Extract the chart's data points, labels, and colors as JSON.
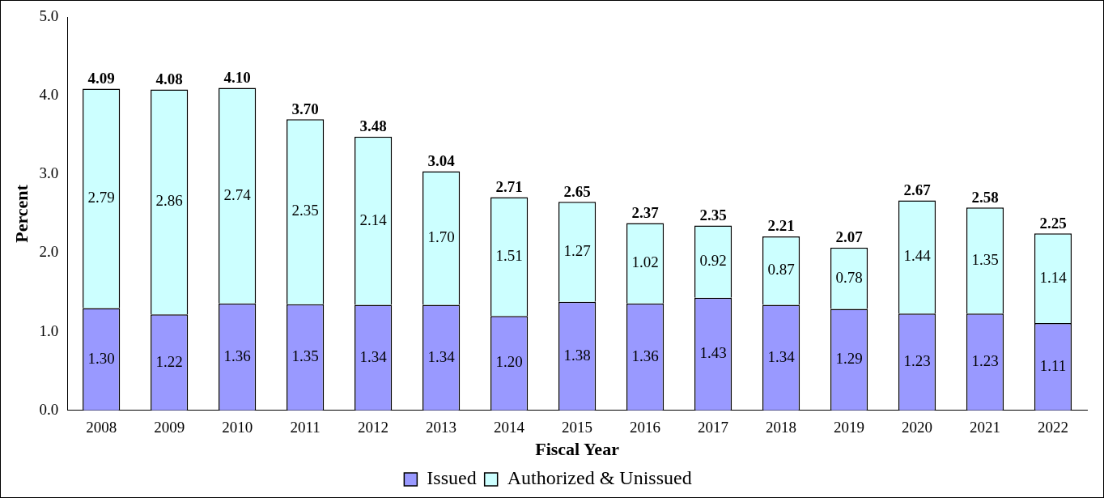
{
  "chart_data": {
    "type": "bar",
    "stacked": true,
    "xlabel": "Fiscal Year",
    "ylabel": "Percent",
    "categories": [
      "2008",
      "2009",
      "2010",
      "2011",
      "2012",
      "2013",
      "2014",
      "2015",
      "2016",
      "2017",
      "2018",
      "2019",
      "2020",
      "2021",
      "2022"
    ],
    "series": [
      {
        "name": "Issued",
        "color": "#9999ff",
        "values": [
          1.3,
          1.22,
          1.36,
          1.35,
          1.34,
          1.34,
          1.2,
          1.38,
          1.36,
          1.43,
          1.34,
          1.29,
          1.23,
          1.23,
          1.11
        ]
      },
      {
        "name": "Authorized & Unissued",
        "color": "#ccffff",
        "values": [
          2.79,
          2.86,
          2.74,
          2.35,
          2.14,
          1.7,
          1.51,
          1.27,
          1.02,
          0.92,
          0.87,
          0.78,
          1.44,
          1.35,
          1.14
        ]
      }
    ],
    "value_labels": [
      [
        "1.30",
        "1.22",
        "1.36",
        "1.35",
        "1.34",
        "1.34",
        "1.20",
        "1.38",
        "1.36",
        "1.43",
        "1.34",
        "1.29",
        "1.23",
        "1.23",
        "1.11"
      ],
      [
        "2.79",
        "2.86",
        "2.74",
        "2.35",
        "2.14",
        "1.70",
        "1.51",
        "1.27",
        "1.02",
        "0.92",
        "0.87",
        "0.78",
        "1.44",
        "1.35",
        "1.14"
      ]
    ],
    "totals": [
      "4.09",
      "4.08",
      "4.10",
      "3.70",
      "3.48",
      "3.04",
      "2.71",
      "2.65",
      "2.37",
      "2.35",
      "2.21",
      "2.07",
      "2.67",
      "2.58",
      "2.25"
    ],
    "ylim": [
      0,
      5
    ],
    "yticks": [
      {
        "value": 0,
        "label": "0.0"
      },
      {
        "value": 1,
        "label": "1.0"
      },
      {
        "value": 2,
        "label": "2.0"
      },
      {
        "value": 3,
        "label": "3.0"
      },
      {
        "value": 4,
        "label": "4.0"
      },
      {
        "value": 5,
        "label": "5.0"
      }
    ],
    "grid": false,
    "legend": "bottom"
  }
}
